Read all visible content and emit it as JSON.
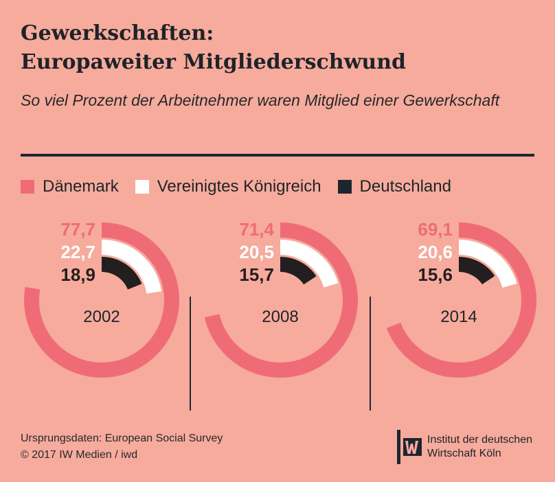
{
  "header": {
    "title_line1": "Gewerkschaften:",
    "title_line2": "Europaweiter Mitgliederschwund",
    "subtitle": "So viel Prozent der Arbeitnehmer waren Mitglied einer Gewerkschaft"
  },
  "legend": {
    "items": [
      {
        "label": "Dänemark",
        "color": "#ef6c76"
      },
      {
        "label": "Vereinigtes Königreich",
        "color": "#ffffff"
      },
      {
        "label": "Deutschland",
        "color": "#1d2630"
      }
    ]
  },
  "chart_data": {
    "type": "radial-bar",
    "series": [
      {
        "name": "Dänemark",
        "color": "#ef6c76",
        "label_color": "#ef6c76"
      },
      {
        "name": "Vereinigtes Königreich",
        "color": "#ffffff",
        "label_color": "#ffffff"
      },
      {
        "name": "Deutschland",
        "color": "#231f20",
        "label_color": "#231f20"
      }
    ],
    "panels": [
      {
        "year": "2002",
        "values": [
          77.7,
          22.7,
          18.9
        ],
        "labels": [
          "77,7",
          "22,7",
          "18,9"
        ]
      },
      {
        "year": "2008",
        "values": [
          71.4,
          20.5,
          15.7
        ],
        "labels": [
          "71,4",
          "20,5",
          "15,7"
        ]
      },
      {
        "year": "2014",
        "values": [
          69.1,
          20.6,
          15.6
        ],
        "labels": [
          "69,1",
          "20,6",
          "15,6"
        ]
      }
    ],
    "max": 100,
    "unit": "%"
  },
  "footer": {
    "source": "Ursprungsdaten: European Social Survey",
    "copyright": "© 2017 IW Medien / iwd"
  },
  "logo": {
    "line1": "Institut der deutschen",
    "line2": "Wirtschaft Köln"
  }
}
